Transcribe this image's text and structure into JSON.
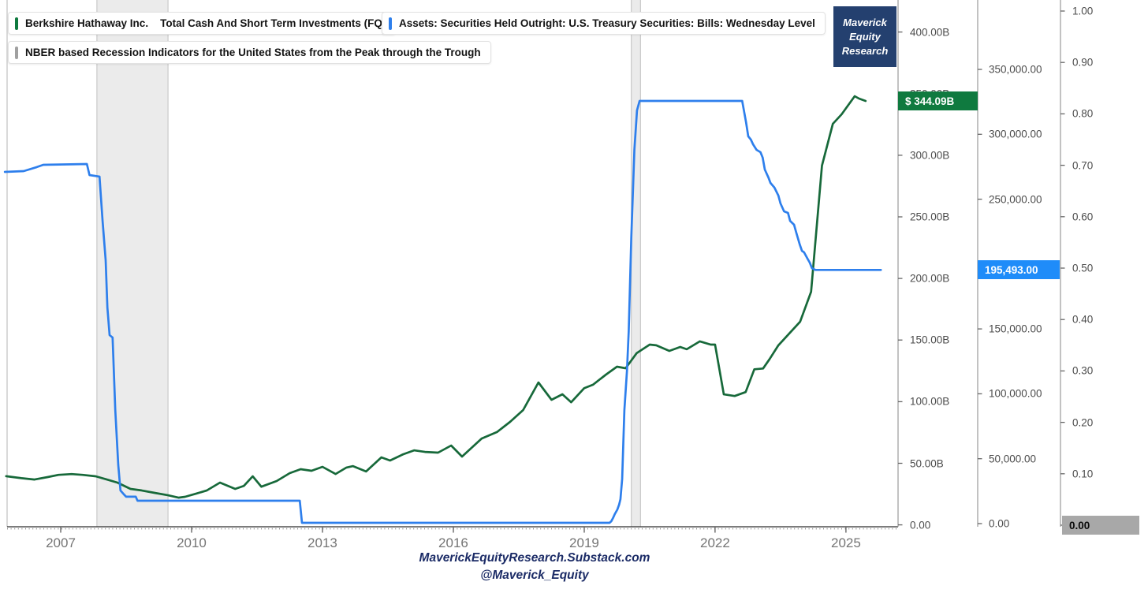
{
  "legend": {
    "series1_name": "Berkshire Hathaway Inc.",
    "series1_desc": "Total Cash And Short Term Investments (FQ)",
    "series2_label": "Assets: Securities Held Outright: U.S. Treasury Securities: Bills: Wednesday Level",
    "recession_label": "NBER based Recession Indicators for the United States from the Peak through the Trough"
  },
  "badge": {
    "lines": [
      "Maverick",
      "Equity",
      "Research"
    ],
    "bg_color": "#24406F"
  },
  "value_labels": {
    "berkshire_last": "$ 344.09B",
    "bills_last": "195,493.00",
    "recession_last": "0.00"
  },
  "footer": {
    "line1": "MaverickEquityResearch.Substack.com",
    "line2": "@Maverick_Equity"
  },
  "colors": {
    "berkshire_line": "#17693A",
    "berkshire_label_bg": "#0F7A3F",
    "bills_line": "#2E7FEC",
    "bills_label_bg": "#1F8CF9",
    "recession_band": "#EBEBEB",
    "recession_band_edge": "#C0C0C0",
    "recession_label_bg": "#A8A8A8",
    "badge_bg": "#24406F",
    "footer_text": "#1B2B66"
  },
  "chart_data": {
    "type": "line",
    "x_axis": {
      "tick_values": [
        2007,
        2010,
        2013,
        2016,
        2019,
        2022,
        2025
      ],
      "tick_labels": [
        "2007",
        "2010",
        "2013",
        "2016",
        "2019",
        "2022",
        "2025"
      ],
      "range": [
        2005.7,
        2026.2
      ]
    },
    "y_axes": [
      {
        "id": "billions",
        "side": "right-1",
        "unit": "USD billions",
        "tick_values": [
          0,
          50,
          100,
          150,
          200,
          250,
          300,
          350,
          400
        ],
        "tick_labels": [
          "0.00",
          "50.00B",
          "100.00B",
          "150.00B",
          "200.00B",
          "250.00B",
          "300.00B",
          "350.00B",
          "400.00B"
        ],
        "range": [
          0,
          400
        ]
      },
      {
        "id": "millions",
        "side": "right-2",
        "unit": "USD millions",
        "tick_values": [
          0,
          50000,
          100000,
          150000,
          200000,
          250000,
          300000,
          350000
        ],
        "tick_labels": [
          "0.00",
          "50,000.00",
          "100,000.00",
          "150,000.00",
          "200,000.00",
          "250,000.00",
          "300,000.00",
          "350,000.00"
        ],
        "range": [
          0,
          350000
        ]
      },
      {
        "id": "indicator",
        "side": "right-3",
        "unit": "recession indicator",
        "tick_values": [
          0,
          0.1,
          0.2,
          0.3,
          0.4,
          0.5,
          0.6,
          0.7,
          0.8,
          0.9,
          1.0
        ],
        "tick_labels": [
          "0.00",
          "0.10",
          "0.20",
          "0.30",
          "0.40",
          "0.50",
          "0.60",
          "0.70",
          "0.80",
          "0.90",
          "1.00"
        ],
        "range": [
          0,
          1
        ]
      }
    ],
    "recession_bands": [
      {
        "from": 2007.83,
        "to": 2009.46
      },
      {
        "from": 2020.08,
        "to": 2020.29
      }
    ],
    "series": [
      {
        "name": "Berkshire Hathaway Inc. Total Cash And Short Term Investments (FQ)",
        "axis": "billions",
        "color": "#17693A",
        "last_value": 344.09,
        "points": [
          [
            2005.75,
            39.5
          ],
          [
            2006.1,
            37.9
          ],
          [
            2006.4,
            36.8
          ],
          [
            2006.7,
            38.8
          ],
          [
            2006.95,
            40.6
          ],
          [
            2007.25,
            41.2
          ],
          [
            2007.5,
            40.6
          ],
          [
            2007.8,
            39.4
          ],
          [
            2008.05,
            36.9
          ],
          [
            2008.3,
            34.3
          ],
          [
            2008.6,
            29.2
          ],
          [
            2008.85,
            28
          ],
          [
            2009.15,
            26
          ],
          [
            2009.45,
            24.1
          ],
          [
            2009.7,
            22.1
          ],
          [
            2009.85,
            22.8
          ],
          [
            2010.1,
            25.3
          ],
          [
            2010.35,
            28
          ],
          [
            2010.65,
            34.3
          ],
          [
            2011,
            29.2
          ],
          [
            2011.2,
            31.7
          ],
          [
            2011.4,
            39.4
          ],
          [
            2011.6,
            31
          ],
          [
            2011.95,
            35.6
          ],
          [
            2012.25,
            42
          ],
          [
            2012.5,
            45.2
          ],
          [
            2012.75,
            43.9
          ],
          [
            2013,
            47.1
          ],
          [
            2013.3,
            41.3
          ],
          [
            2013.55,
            46.5
          ],
          [
            2013.7,
            47.7
          ],
          [
            2014,
            43.3
          ],
          [
            2014.35,
            54.8
          ],
          [
            2014.55,
            52.2
          ],
          [
            2014.85,
            57.3
          ],
          [
            2015.1,
            60.5
          ],
          [
            2015.35,
            59.2
          ],
          [
            2015.65,
            58.6
          ],
          [
            2015.95,
            64.4
          ],
          [
            2016.2,
            55.4
          ],
          [
            2016.65,
            70.1
          ],
          [
            2017,
            75.3
          ],
          [
            2017.3,
            83.6
          ],
          [
            2017.6,
            93.2
          ],
          [
            2017.95,
            115.6
          ],
          [
            2018.25,
            101.5
          ],
          [
            2018.5,
            106
          ],
          [
            2018.7,
            99.5
          ],
          [
            2019,
            111
          ],
          [
            2019.2,
            113.7
          ],
          [
            2019.5,
            122
          ],
          [
            2019.75,
            128.4
          ],
          [
            2019.95,
            127.1
          ],
          [
            2020.2,
            139.3
          ],
          [
            2020.5,
            146.3
          ],
          [
            2020.65,
            145.7
          ],
          [
            2020.95,
            141.2
          ],
          [
            2021.2,
            144.4
          ],
          [
            2021.35,
            142.5
          ],
          [
            2021.65,
            148.9
          ],
          [
            2021.9,
            146.3
          ],
          [
            2022,
            146.3
          ],
          [
            2022.2,
            105.9
          ],
          [
            2022.45,
            104.6
          ],
          [
            2022.7,
            107.8
          ],
          [
            2022.9,
            126.3
          ],
          [
            2023.1,
            126.9
          ],
          [
            2023.25,
            134.6
          ],
          [
            2023.45,
            145.7
          ],
          [
            2023.7,
            155.3
          ],
          [
            2023.95,
            164.9
          ],
          [
            2024.2,
            189.2
          ],
          [
            2024.45,
            291.6
          ],
          [
            2024.7,
            325.5
          ],
          [
            2024.9,
            333.2
          ],
          [
            2025.2,
            347.9
          ],
          [
            2025.3,
            346
          ],
          [
            2025.45,
            344.09
          ]
        ]
      },
      {
        "name": "Assets: Securities Held Outright: U.S. Treasury Securities: Bills: Wednesday Level",
        "axis": "millions",
        "color": "#2E7FEC",
        "last_value": 195493,
        "points": [
          [
            2005.72,
            271000
          ],
          [
            2006.15,
            271600
          ],
          [
            2006.45,
            274700
          ],
          [
            2006.6,
            276500
          ],
          [
            2007.6,
            277100
          ],
          [
            2007.66,
            268600
          ],
          [
            2007.89,
            267400
          ],
          [
            2007.96,
            233300
          ],
          [
            2008.03,
            203000
          ],
          [
            2008.07,
            166500
          ],
          [
            2008.12,
            145200
          ],
          [
            2008.19,
            143400
          ],
          [
            2008.25,
            87500
          ],
          [
            2008.32,
            45000
          ],
          [
            2008.37,
            25500
          ],
          [
            2008.45,
            22500
          ],
          [
            2008.5,
            20700
          ],
          [
            2008.72,
            20700
          ],
          [
            2008.76,
            17600
          ],
          [
            2012.48,
            17600
          ],
          [
            2012.53,
            600
          ],
          [
            2019.58,
            600
          ],
          [
            2019.62,
            1800
          ],
          [
            2019.66,
            4300
          ],
          [
            2019.7,
            7300
          ],
          [
            2019.76,
            10900
          ],
          [
            2019.8,
            14600
          ],
          [
            2019.83,
            18800
          ],
          [
            2019.87,
            34600
          ],
          [
            2019.92,
            87500
          ],
          [
            2019.98,
            117900
          ],
          [
            2020.02,
            148300
          ],
          [
            2020.08,
            221200
          ],
          [
            2020.15,
            288000
          ],
          [
            2020.21,
            318400
          ],
          [
            2020.27,
            325700
          ],
          [
            2022.62,
            325700
          ],
          [
            2022.71,
            309300
          ],
          [
            2022.76,
            298400
          ],
          [
            2022.82,
            295900
          ],
          [
            2022.87,
            292300
          ],
          [
            2022.95,
            288000
          ],
          [
            2023.04,
            286200
          ],
          [
            2023.09,
            282000
          ],
          [
            2023.14,
            272800
          ],
          [
            2023.22,
            266800
          ],
          [
            2023.27,
            262500
          ],
          [
            2023.36,
            258900
          ],
          [
            2023.45,
            252800
          ],
          [
            2023.5,
            246700
          ],
          [
            2023.58,
            240600
          ],
          [
            2023.67,
            239400
          ],
          [
            2023.72,
            233300
          ],
          [
            2023.81,
            230300
          ],
          [
            2023.86,
            224200
          ],
          [
            2023.94,
            215100
          ],
          [
            2023.99,
            210200
          ],
          [
            2024.04,
            209000
          ],
          [
            2024.12,
            204100
          ],
          [
            2024.17,
            201100
          ],
          [
            2024.22,
            196800
          ],
          [
            2024.3,
            195493
          ],
          [
            2025.8,
            195493
          ]
        ]
      }
    ]
  }
}
